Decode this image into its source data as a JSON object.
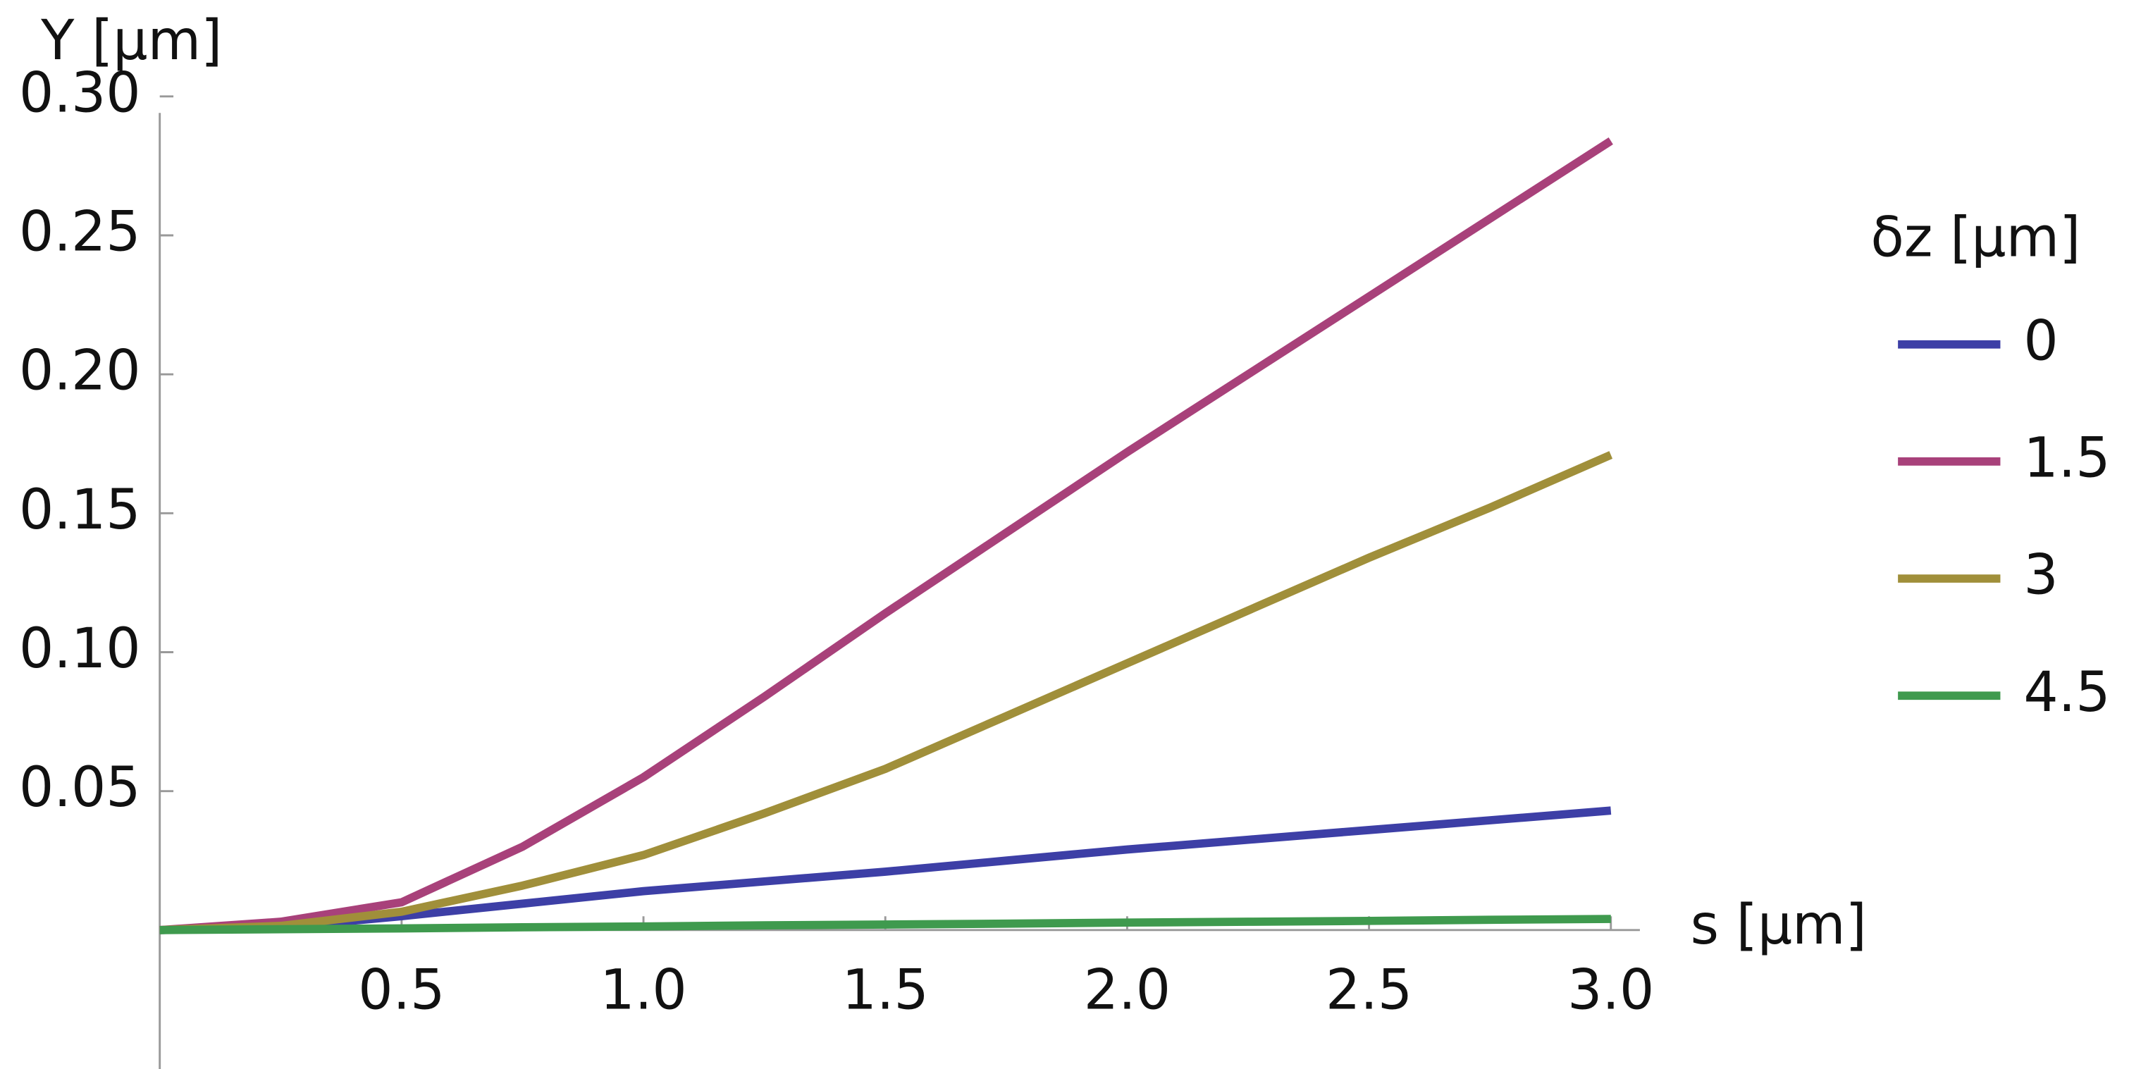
{
  "chart_data": {
    "type": "line",
    "y_label": "Y [μm]",
    "x_label": "s [μm]",
    "legend_title": "δz [μm]",
    "x": [
      0,
      0.25,
      0.5,
      0.75,
      1.0,
      1.25,
      1.5,
      1.75,
      2.0,
      2.25,
      2.5,
      2.75,
      3.0
    ],
    "series": [
      {
        "name": "0",
        "color": "#3d3fa6",
        "values": [
          0,
          0.001,
          0.005,
          0.0095,
          0.014,
          0.0175,
          0.021,
          0.025,
          0.029,
          0.0325,
          0.036,
          0.0395,
          0.043
        ]
      },
      {
        "name": "1.5",
        "color": "#a8417a",
        "values": [
          0,
          0.003,
          0.01,
          0.03,
          0.055,
          0.084,
          0.114,
          0.143,
          0.172,
          0.2,
          0.228,
          0.256,
          0.284
        ]
      },
      {
        "name": "3",
        "color": "#a08f3a",
        "values": [
          0,
          0.0015,
          0.0066,
          0.016,
          0.027,
          0.042,
          0.058,
          0.077,
          0.096,
          0.115,
          0.134,
          0.152,
          0.171
        ]
      },
      {
        "name": "4.5",
        "color": "#3f9a4e",
        "values": [
          0,
          0.0003,
          0.0006,
          0.001,
          0.0013,
          0.0017,
          0.002,
          0.0023,
          0.0027,
          0.003,
          0.0033,
          0.0037,
          0.004
        ]
      }
    ],
    "xlim": [
      0,
      3.06
    ],
    "ylim": [
      -0.05,
      0.3
    ],
    "xticks": [
      0.5,
      {
        "value": 1.0,
        "label": "1.0"
      },
      1.5,
      {
        "value": 2.0,
        "label": "2.0"
      },
      2.5,
      {
        "value": 3.0,
        "label": "3.0"
      }
    ],
    "yticks": [
      0.05,
      {
        "value": 0.1,
        "label": "0.10"
      },
      0.15,
      {
        "value": 0.2,
        "label": "0.20"
      },
      0.25,
      {
        "value": 0.3,
        "label": "0.30"
      }
    ],
    "legend_position": "right"
  }
}
